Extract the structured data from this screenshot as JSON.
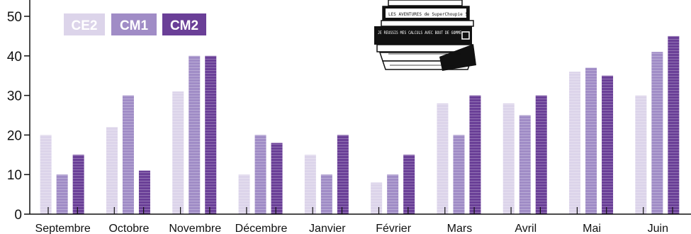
{
  "chart_data": {
    "type": "bar",
    "categories": [
      "Septembre",
      "Octobre",
      "Novembre",
      "Décembre",
      "Janvier",
      "Février",
      "Mars",
      "Avril",
      "Mai",
      "Juin"
    ],
    "series": [
      {
        "name": "CE2",
        "color": "#dcd4ea",
        "values": [
          20,
          22,
          31,
          10,
          15,
          8,
          28,
          28,
          36,
          30
        ]
      },
      {
        "name": "CM1",
        "color": "#a08cc6",
        "values": [
          10,
          30,
          40,
          20,
          10,
          10,
          20,
          25,
          37,
          41
        ]
      },
      {
        "name": "CM2",
        "color": "#6a3f97",
        "values": [
          15,
          11,
          40,
          18,
          20,
          15,
          30,
          30,
          35,
          45
        ]
      }
    ],
    "yticks": [
      0,
      10,
      20,
      30,
      40,
      50
    ],
    "ylim": [
      0,
      50
    ],
    "title": "",
    "xlabel": "",
    "ylabel": "",
    "grid": false,
    "legend_position": "top-left",
    "illustration": {
      "book_titles": [
        "LES AVENTURES de SuperChoupie 5",
        "JE REUSSIS MES CALCULS AVEC BOUT DE GOMME"
      ]
    }
  }
}
